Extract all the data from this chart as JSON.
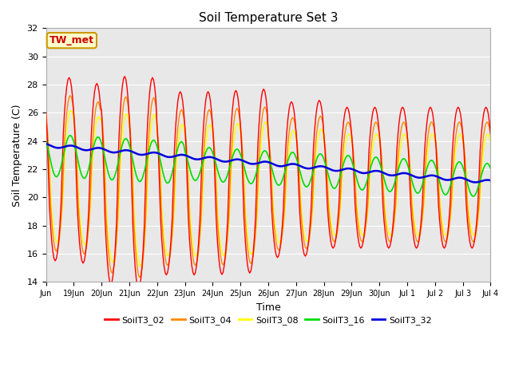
{
  "title": "Soil Temperature Set 3",
  "xlabel": "Time",
  "ylabel": "Soil Temperature (C)",
  "ylim": [
    14,
    32
  ],
  "yticks": [
    14,
    16,
    18,
    20,
    22,
    24,
    26,
    28,
    30,
    32
  ],
  "colors": {
    "SoilT3_02": "#ff0000",
    "SoilT3_04": "#ff8800",
    "SoilT3_08": "#ffff00",
    "SoilT3_16": "#00dd00",
    "SoilT3_32": "#0000dd"
  },
  "bg_color": "#e8e8e8",
  "annotation_text": "TW_met",
  "annotation_bg": "#ffffcc",
  "annotation_border": "#cc9900",
  "figsize": [
    6.4,
    4.8
  ],
  "dpi": 100
}
